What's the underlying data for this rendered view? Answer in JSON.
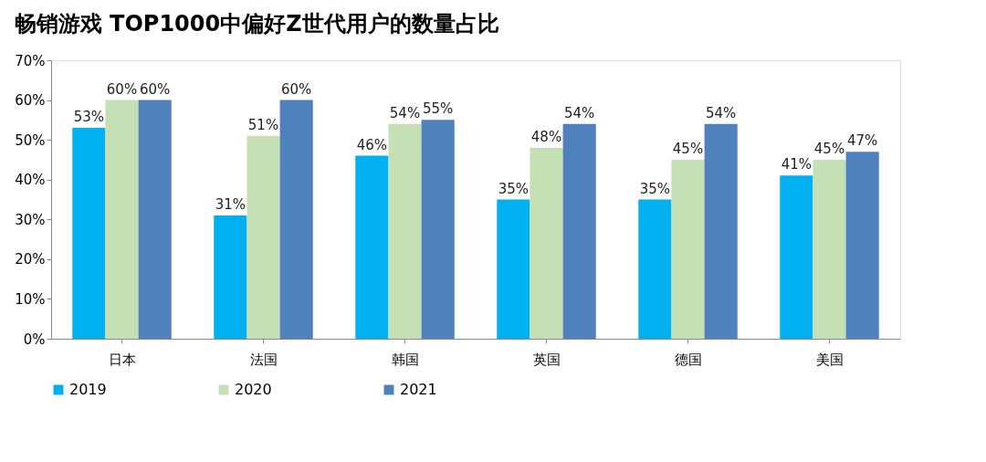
{
  "chart_data": {
    "type": "bar",
    "title": "畅销游戏 TOP1000中偏好Z世代用户的数量占比",
    "categories": [
      "日本",
      "法国",
      "韩国",
      "英国",
      "德国",
      "美国"
    ],
    "series": [
      {
        "name": "2019",
        "color": "#00b0f0",
        "values": [
          53,
          31,
          46,
          35,
          35,
          41
        ],
        "value_labels": [
          "53%",
          "31%",
          "46%",
          "35%",
          "35%",
          "41%"
        ]
      },
      {
        "name": "2020",
        "color": "#c5e0b4",
        "values": [
          60,
          51,
          54,
          48,
          45,
          45
        ],
        "value_labels": [
          "60%",
          "51%",
          "54%",
          "48%",
          "45%",
          "45%"
        ]
      },
      {
        "name": "2021",
        "color": "#4f81bd",
        "values": [
          60,
          60,
          55,
          54,
          54,
          47
        ],
        "value_labels": [
          "60%",
          "60%",
          "55%",
          "54%",
          "54%",
          "47%"
        ]
      }
    ],
    "ylim": [
      0,
      70
    ],
    "yticks": [
      {
        "value": 0,
        "label": "0%"
      },
      {
        "value": 10,
        "label": "10%"
      },
      {
        "value": 20,
        "label": "20%"
      },
      {
        "value": 30,
        "label": "30%"
      },
      {
        "value": 40,
        "label": "40%"
      },
      {
        "value": 50,
        "label": "50%"
      },
      {
        "value": 60,
        "label": "60%"
      },
      {
        "value": 70,
        "label": "70%"
      }
    ],
    "grid": false,
    "legend": "bottom"
  }
}
